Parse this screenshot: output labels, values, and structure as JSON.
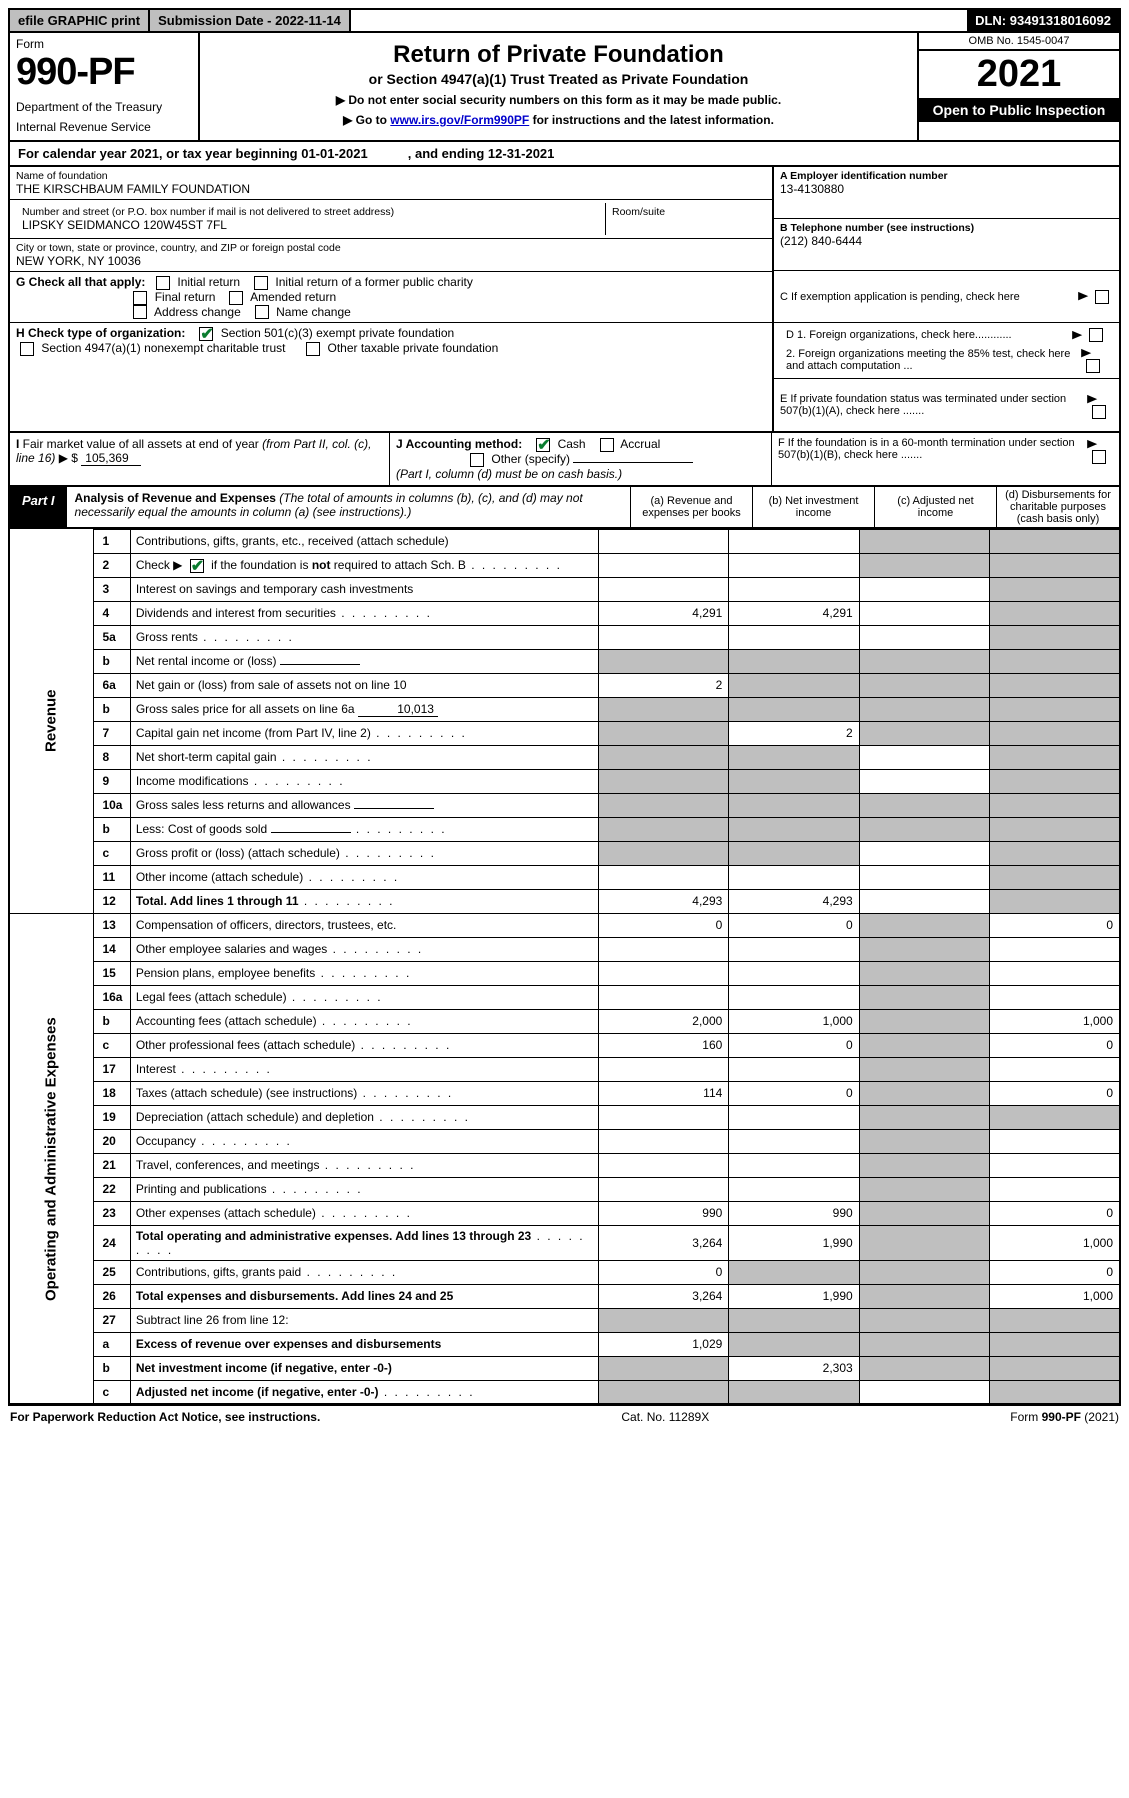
{
  "colors": {
    "shade": "#bfbfbf",
    "link": "#0000cc",
    "check": "#0a7c2f"
  },
  "topbar": {
    "efile": "efile GRAPHIC print",
    "submission_label": "Submission Date - ",
    "submission_date": "2022-11-14",
    "dln_label": "DLN: ",
    "dln": "93491318016092"
  },
  "header": {
    "form_word": "Form",
    "form_number": "990-PF",
    "dept1": "Department of the Treasury",
    "dept2": "Internal Revenue Service",
    "title": "Return of Private Foundation",
    "subtitle": "or Section 4947(a)(1) Trust Treated as Private Foundation",
    "instr1": "▶ Do not enter social security numbers on this form as it may be made public.",
    "instr2_pre": "▶ Go to ",
    "instr2_link": "www.irs.gov/Form990PF",
    "instr2_post": " for instructions and the latest information.",
    "omb": "OMB No. 1545-0047",
    "year": "2021",
    "open": "Open to Public Inspection"
  },
  "cal": {
    "line_a": "For calendar year 2021, or tax year beginning 01-01-2021",
    "line_b": ", and ending 12-31-2021"
  },
  "ident": {
    "name_label": "Name of foundation",
    "name": "THE KIRSCHBAUM FAMILY FOUNDATION",
    "addr_label": "Number and street (or P.O. box number if mail is not delivered to street address)",
    "addr": "LIPSKY SEIDMANCO 120W45ST 7FL",
    "room_label": "Room/suite",
    "city_label": "City or town, state or province, country, and ZIP or foreign postal code",
    "city": "NEW YORK, NY  10036",
    "a_label": "A Employer identification number",
    "a_val": "13-4130880",
    "b_label": "B Telephone number (see instructions)",
    "b_val": "(212) 840-6444",
    "c_label": "C If exemption application is pending, check here",
    "d1_label": "D 1. Foreign organizations, check here............",
    "d2_label": "2. Foreign organizations meeting the 85% test, check here and attach computation ...",
    "e_label": "E  If private foundation status was terminated under section 507(b)(1)(A), check here .......",
    "f_label": "F  If the foundation is in a 60-month termination under section 507(b)(1)(B), check here ......."
  },
  "g": {
    "label": "G Check all that apply:",
    "opts": [
      "Initial return",
      "Initial return of a former public charity",
      "Final return",
      "Amended return",
      "Address change",
      "Name change"
    ]
  },
  "h": {
    "label": "H Check type of organization:",
    "o1": "Section 501(c)(3) exempt private foundation",
    "o2": "Section 4947(a)(1) nonexempt charitable trust",
    "o3": "Other taxable private foundation"
  },
  "i": {
    "label": "I Fair market value of all assets at end of year (from Part II, col. (c), line 16) ▶ $",
    "val": "105,369"
  },
  "j": {
    "label": "J Accounting method:",
    "cash": "Cash",
    "accrual": "Accrual",
    "other": "Other (specify)",
    "note": "(Part I, column (d) must be on cash basis.)"
  },
  "part1": {
    "tag": "Part I",
    "title": "Analysis of Revenue and Expenses",
    "note": "(The total of amounts in columns (b), (c), and (d) may not necessarily equal the amounts in column (a) (see instructions).)",
    "col_a": "(a)   Revenue and expenses per books",
    "col_b": "(b)   Net investment income",
    "col_c": "(c)   Adjusted net income",
    "col_d": "(d)  Disbursements for charitable purposes (cash basis only)"
  },
  "sections": {
    "rev": "Revenue",
    "exp": "Operating and Administrative Expenses"
  },
  "rows": [
    {
      "n": "1",
      "d": "Contributions, gifts, grants, etc., received (attach schedule)",
      "a": "",
      "b": "",
      "c": "S",
      "dd": "S"
    },
    {
      "n": "2",
      "d": "Check ▶ [x] if the foundation is not required to attach Sch. B",
      "dots": true,
      "a": "",
      "b": "",
      "c": "S",
      "dd": "S",
      "chk": true
    },
    {
      "n": "3",
      "d": "Interest on savings and temporary cash investments",
      "a": "",
      "b": "",
      "c": "",
      "dd": "S"
    },
    {
      "n": "4",
      "d": "Dividends and interest from securities",
      "dots": true,
      "a": "4,291",
      "b": "4,291",
      "c": "",
      "dd": "S"
    },
    {
      "n": "5a",
      "d": "Gross rents",
      "dots": true,
      "a": "",
      "b": "",
      "c": "",
      "dd": "S"
    },
    {
      "n": "b",
      "d": "Net rental income or (loss)",
      "inline": true,
      "a": "S",
      "b": "S",
      "c": "S",
      "dd": "S"
    },
    {
      "n": "6a",
      "d": "Net gain or (loss) from sale of assets not on line 10",
      "a": "2",
      "b": "S",
      "c": "S",
      "dd": "S"
    },
    {
      "n": "b",
      "d": "Gross sales price for all assets on line 6a",
      "inline": true,
      "iv": "10,013",
      "a": "S",
      "b": "S",
      "c": "S",
      "dd": "S"
    },
    {
      "n": "7",
      "d": "Capital gain net income (from Part IV, line 2)",
      "dots": true,
      "a": "S",
      "b": "2",
      "c": "S",
      "dd": "S"
    },
    {
      "n": "8",
      "d": "Net short-term capital gain",
      "dots": true,
      "a": "S",
      "b": "S",
      "c": "",
      "dd": "S"
    },
    {
      "n": "9",
      "d": "Income modifications",
      "dots": true,
      "a": "S",
      "b": "S",
      "c": "",
      "dd": "S"
    },
    {
      "n": "10a",
      "d": "Gross sales less returns and allowances",
      "inline": true,
      "a": "S",
      "b": "S",
      "c": "S",
      "dd": "S"
    },
    {
      "n": "b",
      "d": "Less: Cost of goods sold",
      "dots": true,
      "inline": true,
      "a": "S",
      "b": "S",
      "c": "S",
      "dd": "S"
    },
    {
      "n": "c",
      "d": "Gross profit or (loss) (attach schedule)",
      "dots": true,
      "a": "S",
      "b": "S",
      "c": "",
      "dd": "S"
    },
    {
      "n": "11",
      "d": "Other income (attach schedule)",
      "dots": true,
      "a": "",
      "b": "",
      "c": "",
      "dd": "S"
    },
    {
      "n": "12",
      "d": "Total. Add lines 1 through 11",
      "dots": true,
      "bold": true,
      "a": "4,293",
      "b": "4,293",
      "c": "",
      "dd": "S"
    }
  ],
  "exp_rows": [
    {
      "n": "13",
      "d": "Compensation of officers, directors, trustees, etc.",
      "a": "0",
      "b": "0",
      "c": "S",
      "dd": "0"
    },
    {
      "n": "14",
      "d": "Other employee salaries and wages",
      "dots": true,
      "a": "",
      "b": "",
      "c": "S",
      "dd": ""
    },
    {
      "n": "15",
      "d": "Pension plans, employee benefits",
      "dots": true,
      "a": "",
      "b": "",
      "c": "S",
      "dd": ""
    },
    {
      "n": "16a",
      "d": "Legal fees (attach schedule)",
      "dots": true,
      "a": "",
      "b": "",
      "c": "S",
      "dd": ""
    },
    {
      "n": "b",
      "d": "Accounting fees (attach schedule)",
      "dots": true,
      "a": "2,000",
      "b": "1,000",
      "c": "S",
      "dd": "1,000"
    },
    {
      "n": "c",
      "d": "Other professional fees (attach schedule)",
      "dots": true,
      "a": "160",
      "b": "0",
      "c": "S",
      "dd": "0"
    },
    {
      "n": "17",
      "d": "Interest",
      "dots": true,
      "a": "",
      "b": "",
      "c": "S",
      "dd": ""
    },
    {
      "n": "18",
      "d": "Taxes (attach schedule) (see instructions)",
      "dots": true,
      "a": "114",
      "b": "0",
      "c": "S",
      "dd": "0"
    },
    {
      "n": "19",
      "d": "Depreciation (attach schedule) and depletion",
      "dots": true,
      "a": "",
      "b": "",
      "c": "S",
      "dd": "S"
    },
    {
      "n": "20",
      "d": "Occupancy",
      "dots": true,
      "a": "",
      "b": "",
      "c": "S",
      "dd": ""
    },
    {
      "n": "21",
      "d": "Travel, conferences, and meetings",
      "dots": true,
      "a": "",
      "b": "",
      "c": "S",
      "dd": ""
    },
    {
      "n": "22",
      "d": "Printing and publications",
      "dots": true,
      "a": "",
      "b": "",
      "c": "S",
      "dd": ""
    },
    {
      "n": "23",
      "d": "Other expenses (attach schedule)",
      "dots": true,
      "a": "990",
      "b": "990",
      "c": "S",
      "dd": "0"
    },
    {
      "n": "24",
      "d": "Total operating and administrative expenses. Add lines 13 through 23",
      "dots": true,
      "bold": true,
      "a": "3,264",
      "b": "1,990",
      "c": "S",
      "dd": "1,000"
    },
    {
      "n": "25",
      "d": "Contributions, gifts, grants paid",
      "dots": true,
      "a": "0",
      "b": "S",
      "c": "S",
      "dd": "0"
    },
    {
      "n": "26",
      "d": "Total expenses and disbursements. Add lines 24 and 25",
      "bold": true,
      "a": "3,264",
      "b": "1,990",
      "c": "S",
      "dd": "1,000"
    },
    {
      "n": "27",
      "d": "Subtract line 26 from line 12:",
      "a": "S",
      "b": "S",
      "c": "S",
      "dd": "S"
    },
    {
      "n": "a",
      "d": "Excess of revenue over expenses and disbursements",
      "bold": true,
      "a": "1,029",
      "b": "S",
      "c": "S",
      "dd": "S"
    },
    {
      "n": "b",
      "d": "Net investment income (if negative, enter -0-)",
      "bold": true,
      "a": "S",
      "b": "2,303",
      "c": "S",
      "dd": "S"
    },
    {
      "n": "c",
      "d": "Adjusted net income (if negative, enter -0-)",
      "dots": true,
      "bold": true,
      "a": "S",
      "b": "S",
      "c": "",
      "dd": "S"
    }
  ],
  "footer": {
    "left": "For Paperwork Reduction Act Notice, see instructions.",
    "mid": "Cat. No. 11289X",
    "right": "Form 990-PF (2021)"
  }
}
